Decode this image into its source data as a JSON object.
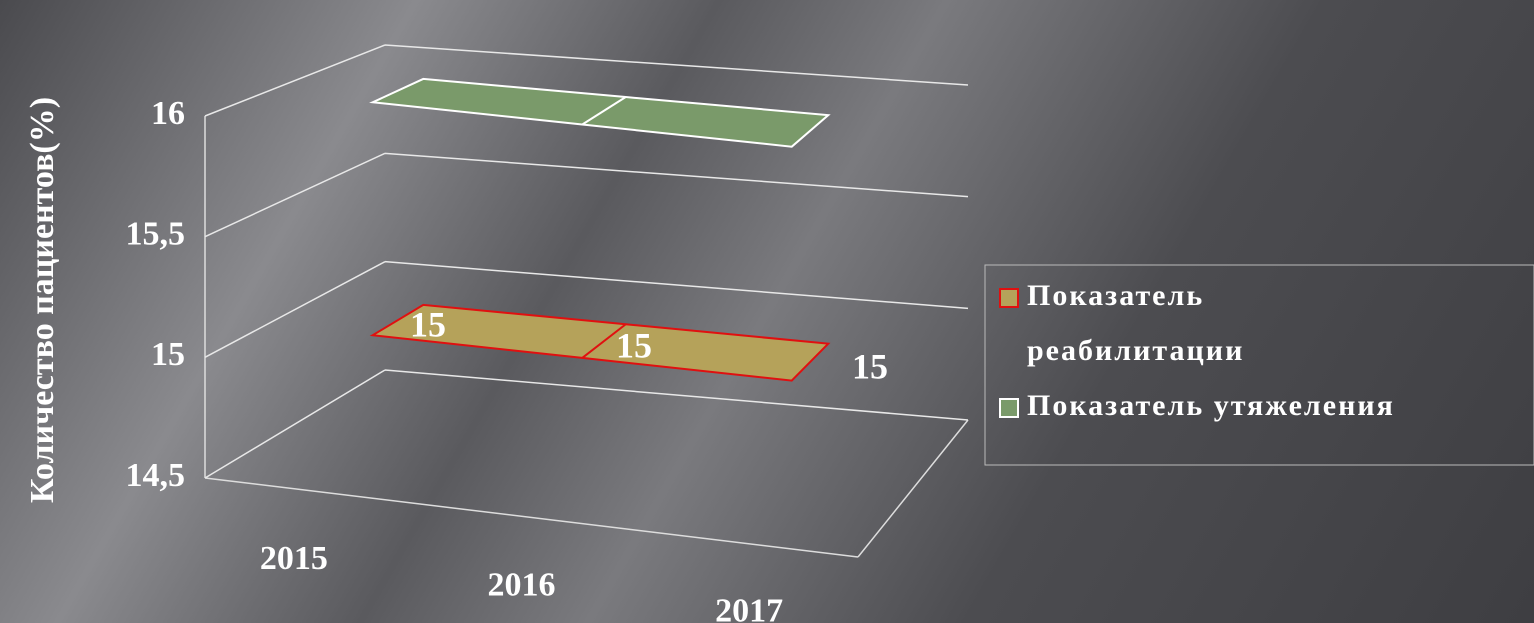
{
  "chart_data": {
    "type": "line3d",
    "y_axis_label": "Количество пациентов(%)",
    "categories": [
      "2015",
      "2016",
      "2017"
    ],
    "series": [
      {
        "name": "Показатель реабилитации",
        "color": "#b5a25a",
        "edge_color": "#e01010",
        "values": [
          15,
          15,
          15
        ],
        "value_labels": [
          "15",
          "15",
          "15"
        ]
      },
      {
        "name": "Показатель утяжеления",
        "color": "#7a9a6a",
        "edge_color": "#ffffff",
        "values": [
          16,
          16,
          16
        ]
      }
    ],
    "ylim": [
      14.5,
      16
    ],
    "yticks": [
      {
        "value": 14.5,
        "label": "14,5"
      },
      15,
      {
        "value": 15.5,
        "label": "15,5"
      },
      16
    ],
    "grid": true,
    "legend": "right"
  }
}
